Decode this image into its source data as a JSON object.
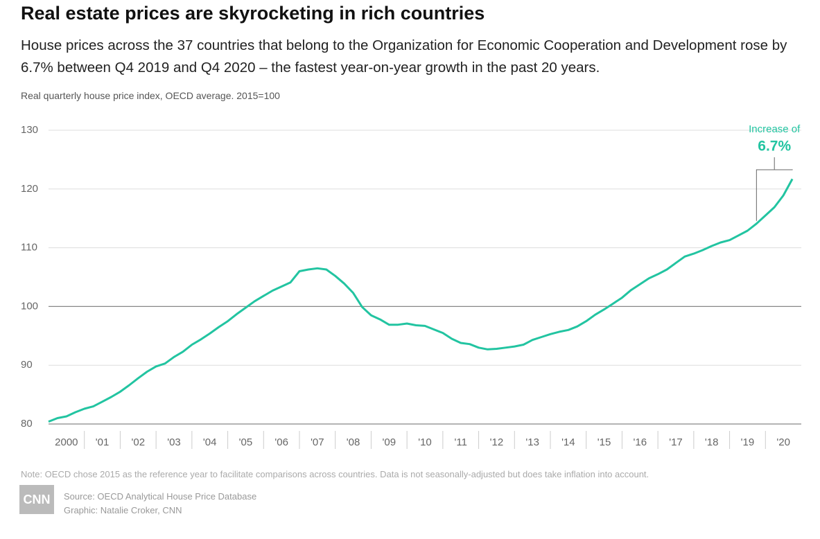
{
  "chart_data": {
    "type": "line",
    "title": "Real estate prices are skyrocketing in rich countries",
    "subtitle": "House prices across the 37 countries that belong to the Organization for Economic Cooperation and Development rose by 6.7% between Q4 2019 and Q4 2020 – the fastest year-on-year growth in the past 20 years.",
    "y_label": "Real quarterly house price index, OECD average. 2015=100",
    "annotation": {
      "text": "Increase of",
      "value_label": "6.7%"
    },
    "note": "Note: OECD chose 2015 as the reference year to facilitate comparisons across countries. Data is not seasonally-adjusted but does take inflation into account.",
    "source": "Source: OECD Analytical House Price Database",
    "credit": "Graphic: Natalie Croker, CNN",
    "logo": "CNN",
    "color": "#22c4a1",
    "x": [
      2000,
      2000.25,
      2000.5,
      2000.75,
      2001,
      2001.25,
      2001.5,
      2001.75,
      2002,
      2002.25,
      2002.5,
      2002.75,
      2003,
      2003.25,
      2003.5,
      2003.75,
      2004,
      2004.25,
      2004.5,
      2004.75,
      2005,
      2005.25,
      2005.5,
      2005.75,
      2006,
      2006.25,
      2006.5,
      2006.75,
      2007,
      2007.25,
      2007.5,
      2007.75,
      2008,
      2008.25,
      2008.5,
      2008.75,
      2009,
      2009.25,
      2009.5,
      2009.75,
      2010,
      2010.25,
      2010.5,
      2010.75,
      2011,
      2011.25,
      2011.5,
      2011.75,
      2012,
      2012.25,
      2012.5,
      2012.75,
      2013,
      2013.25,
      2013.5,
      2013.75,
      2014,
      2014.25,
      2014.5,
      2014.75,
      2015,
      2015.25,
      2015.5,
      2015.75,
      2016,
      2016.25,
      2016.5,
      2016.75,
      2017,
      2017.25,
      2017.5,
      2017.75,
      2018,
      2018.25,
      2018.5,
      2018.75,
      2019,
      2019.25,
      2019.5,
      2019.75,
      2020,
      2020.25,
      2020.5,
      2020.75
    ],
    "values": [
      80.4,
      81.0,
      81.3,
      82.0,
      82.6,
      83.0,
      83.8,
      84.6,
      85.5,
      86.6,
      87.8,
      88.9,
      89.8,
      90.3,
      91.4,
      92.3,
      93.5,
      94.4,
      95.4,
      96.5,
      97.5,
      98.7,
      99.8,
      100.9,
      101.8,
      102.7,
      103.4,
      104.1,
      106.0,
      106.3,
      106.5,
      106.3,
      105.2,
      103.9,
      102.3,
      99.9,
      98.5,
      97.8,
      96.9,
      96.9,
      97.1,
      96.8,
      96.7,
      96.1,
      95.5,
      94.5,
      93.8,
      93.6,
      93.0,
      92.7,
      92.8,
      93.0,
      93.2,
      93.5,
      94.3,
      94.8,
      95.3,
      95.7,
      96.0,
      96.6,
      97.5,
      98.6,
      99.5,
      100.5,
      101.5,
      102.8,
      103.8,
      104.8,
      105.5,
      106.3,
      107.4,
      108.5,
      109.0,
      109.6,
      110.3,
      110.9,
      111.3,
      112.1,
      112.9,
      114.1,
      115.5,
      116.9,
      118.9,
      121.7
    ],
    "xlim": [
      2000,
      2021
    ],
    "xticks": [
      {
        "value": 2000,
        "label": "2000"
      },
      {
        "value": 2001,
        "label": "'01"
      },
      {
        "value": 2002,
        "label": "'02"
      },
      {
        "value": 2003,
        "label": "'03"
      },
      {
        "value": 2004,
        "label": "'04"
      },
      {
        "value": 2005,
        "label": "'05"
      },
      {
        "value": 2006,
        "label": "'06"
      },
      {
        "value": 2007,
        "label": "'07"
      },
      {
        "value": 2008,
        "label": "'08"
      },
      {
        "value": 2009,
        "label": "'09"
      },
      {
        "value": 2010,
        "label": "'10"
      },
      {
        "value": 2011,
        "label": "'11"
      },
      {
        "value": 2012,
        "label": "'12"
      },
      {
        "value": 2013,
        "label": "'13"
      },
      {
        "value": 2014,
        "label": "'14"
      },
      {
        "value": 2015,
        "label": "'15"
      },
      {
        "value": 2016,
        "label": "'16"
      },
      {
        "value": 2017,
        "label": "'17"
      },
      {
        "value": 2018,
        "label": "'18"
      },
      {
        "value": 2019,
        "label": "'19"
      },
      {
        "value": 2020,
        "label": "'20"
      }
    ],
    "ylim": [
      80,
      130
    ],
    "yticks": [
      80,
      90,
      100,
      110,
      120,
      130
    ],
    "reference_line": 100,
    "grid": true
  }
}
